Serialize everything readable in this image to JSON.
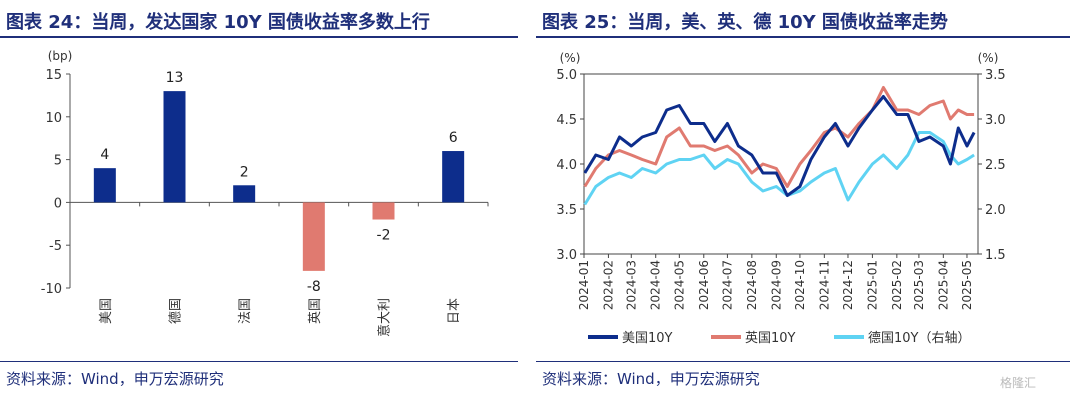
{
  "charts": [
    {
      "title": "图表 24：当周，发达国家 10Y 国债收益率多数上行",
      "source": "资料来源：Wind，申万宏源研究"
    },
    {
      "title": "图表 25：当周，美、英、德 10Y 国债收益率走势",
      "source": "资料来源：Wind，申万宏源研究"
    }
  ],
  "watermark": "格隆汇",
  "colors": {
    "title": "#1f2f7a",
    "us": "#0d2d8c",
    "uk": "#e07a70",
    "de": "#5fd3f3",
    "positive_bar": "#0d2d8c",
    "negative_bar": "#e07a70"
  },
  "chart_data": [
    {
      "type": "bar",
      "unit": "(bp)",
      "categories": [
        "美国",
        "德国",
        "法国",
        "英国",
        "意大利",
        "日本"
      ],
      "values": [
        4,
        13,
        2,
        -8,
        -2,
        6
      ],
      "value_labels": [
        "4",
        "13",
        "2",
        "-8",
        "-2",
        "6"
      ],
      "ylim": [
        -10,
        15
      ],
      "yticks": [
        "15",
        "10",
        "5",
        "0",
        "-5",
        "-10"
      ],
      "grid": false,
      "legend": "none"
    },
    {
      "type": "line",
      "left_unit": "(%)",
      "right_unit": "(%)",
      "ylim_left": [
        3.0,
        5.0
      ],
      "ylim_right": [
        1.5,
        3.5
      ],
      "yticks_left": [
        "5.0",
        "4.5",
        "4.0",
        "3.5",
        "3.0"
      ],
      "yticks_right": [
        "3.5",
        "3.0",
        "2.5",
        "2.0",
        "1.5"
      ],
      "x_labels": [
        "2024-01",
        "2024-02",
        "2024-03",
        "2024-04",
        "2024-05",
        "2024-06",
        "2024-07",
        "2024-08",
        "2024-09",
        "2024-10",
        "2024-11",
        "2024-12",
        "2025-01",
        "2025-02",
        "2025-03",
        "2025-04",
        "2025-05"
      ],
      "legend": "bottom",
      "series": [
        {
          "name": "美国10Y",
          "axis": "left",
          "x": [
            "2024-01-02",
            "2024-01-16",
            "2024-02-01",
            "2024-02-15",
            "2024-03-01",
            "2024-03-15",
            "2024-04-01",
            "2024-04-15",
            "2024-05-01",
            "2024-05-15",
            "2024-06-01",
            "2024-06-15",
            "2024-07-01",
            "2024-07-15",
            "2024-08-01",
            "2024-08-15",
            "2024-09-01",
            "2024-09-15",
            "2024-10-01",
            "2024-10-15",
            "2024-11-01",
            "2024-11-15",
            "2024-12-01",
            "2024-12-15",
            "2025-01-01",
            "2025-01-15",
            "2025-02-01",
            "2025-02-15",
            "2025-03-01",
            "2025-03-15",
            "2025-04-01",
            "2025-04-10",
            "2025-04-20",
            "2025-05-01",
            "2025-05-10"
          ],
          "values": [
            3.9,
            4.1,
            4.05,
            4.3,
            4.2,
            4.3,
            4.35,
            4.6,
            4.65,
            4.45,
            4.45,
            4.25,
            4.45,
            4.2,
            4.1,
            3.9,
            3.9,
            3.65,
            3.75,
            4.05,
            4.3,
            4.45,
            4.2,
            4.4,
            4.6,
            4.75,
            4.55,
            4.55,
            4.25,
            4.3,
            4.2,
            4.0,
            4.4,
            4.2,
            4.35
          ]
        },
        {
          "name": "英国10Y",
          "axis": "left",
          "x": [
            "2024-01-02",
            "2024-01-16",
            "2024-02-01",
            "2024-02-15",
            "2024-03-01",
            "2024-03-15",
            "2024-04-01",
            "2024-04-15",
            "2024-05-01",
            "2024-05-15",
            "2024-06-01",
            "2024-06-15",
            "2024-07-01",
            "2024-07-15",
            "2024-08-01",
            "2024-08-15",
            "2024-09-01",
            "2024-09-15",
            "2024-10-01",
            "2024-10-15",
            "2024-11-01",
            "2024-11-15",
            "2024-12-01",
            "2024-12-15",
            "2025-01-01",
            "2025-01-15",
            "2025-02-01",
            "2025-02-15",
            "2025-03-01",
            "2025-03-15",
            "2025-04-01",
            "2025-04-10",
            "2025-04-20",
            "2025-05-01",
            "2025-05-10"
          ],
          "values": [
            3.75,
            3.95,
            4.1,
            4.15,
            4.1,
            4.05,
            4.0,
            4.3,
            4.4,
            4.2,
            4.2,
            4.15,
            4.2,
            4.1,
            3.9,
            4.0,
            3.95,
            3.75,
            4.0,
            4.15,
            4.35,
            4.4,
            4.3,
            4.45,
            4.6,
            4.85,
            4.6,
            4.6,
            4.55,
            4.65,
            4.7,
            4.5,
            4.6,
            4.55,
            4.55
          ]
        },
        {
          "name": "德国10Y（右轴）",
          "axis": "right",
          "x": [
            "2024-01-02",
            "2024-01-16",
            "2024-02-01",
            "2024-02-15",
            "2024-03-01",
            "2024-03-15",
            "2024-04-01",
            "2024-04-15",
            "2024-05-01",
            "2024-05-15",
            "2024-06-01",
            "2024-06-15",
            "2024-07-01",
            "2024-07-15",
            "2024-08-01",
            "2024-08-15",
            "2024-09-01",
            "2024-09-15",
            "2024-10-01",
            "2024-10-15",
            "2024-11-01",
            "2024-11-15",
            "2024-12-01",
            "2024-12-15",
            "2025-01-01",
            "2025-01-15",
            "2025-02-01",
            "2025-02-15",
            "2025-03-01",
            "2025-03-15",
            "2025-04-01",
            "2025-04-10",
            "2025-04-20",
            "2025-05-01",
            "2025-05-10"
          ],
          "values": [
            2.05,
            2.25,
            2.35,
            2.4,
            2.35,
            2.45,
            2.4,
            2.5,
            2.55,
            2.55,
            2.6,
            2.45,
            2.55,
            2.5,
            2.3,
            2.2,
            2.25,
            2.15,
            2.2,
            2.3,
            2.4,
            2.45,
            2.1,
            2.3,
            2.5,
            2.6,
            2.45,
            2.6,
            2.85,
            2.85,
            2.75,
            2.6,
            2.5,
            2.55,
            2.6
          ]
        }
      ]
    }
  ]
}
